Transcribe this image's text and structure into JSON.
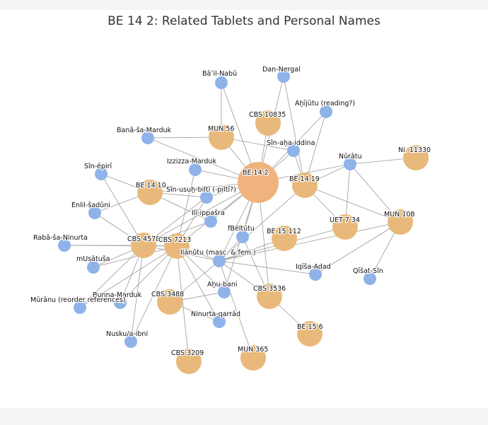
{
  "title": "BE 14 2: Related Tablets and Personal Names",
  "colors": {
    "tablet": "#e8b97a",
    "focus": "#f0b37e",
    "person": "#8fb2e8",
    "edge": "#9a9a9a"
  },
  "nodes": [
    {
      "id": "be142",
      "label": "BE 14 2",
      "kind": "focus"
    },
    {
      "id": "be1419",
      "label": "BE 14 19",
      "kind": "tablet"
    },
    {
      "id": "be1410",
      "label": "BE 14 10",
      "kind": "tablet"
    },
    {
      "id": "be15112",
      "label": "BE 15 112",
      "kind": "tablet"
    },
    {
      "id": "be156",
      "label": "BE 15 6",
      "kind": "tablet"
    },
    {
      "id": "cbs10835",
      "label": "CBS 10835",
      "kind": "tablet"
    },
    {
      "id": "cbs4578",
      "label": "CBS 4578",
      "kind": "tablet"
    },
    {
      "id": "cbs7213",
      "label": "CBS 7213",
      "kind": "tablet"
    },
    {
      "id": "cbs3488",
      "label": "CBS 3488",
      "kind": "tablet"
    },
    {
      "id": "cbs3536",
      "label": "CBS 3536",
      "kind": "tablet"
    },
    {
      "id": "cbs3209",
      "label": "CBS 3209",
      "kind": "tablet"
    },
    {
      "id": "mun56",
      "label": "MUN 56",
      "kind": "tablet"
    },
    {
      "id": "mun108",
      "label": "MUN 108",
      "kind": "tablet"
    },
    {
      "id": "mun365",
      "label": "MUN 365",
      "kind": "tablet"
    },
    {
      "id": "uet734",
      "label": "UET 7 34",
      "kind": "tablet"
    },
    {
      "id": "ni11330",
      "label": "Ni. 11330",
      "kind": "tablet"
    },
    {
      "id": "bailnabu",
      "label": "Bā’il-Nabû",
      "kind": "person"
    },
    {
      "id": "dannergal",
      "label": "Dan-Nergal",
      "kind": "person"
    },
    {
      "id": "ahijutu",
      "label": "Aḫījūtu (reading?)",
      "kind": "person"
    },
    {
      "id": "banasamarduk",
      "label": "Banâ-ša-Marduk",
      "kind": "person"
    },
    {
      "id": "sinahaiddina",
      "label": "Sîn-aḫa-iddina",
      "kind": "person"
    },
    {
      "id": "nuratu",
      "label": "Nūrātu",
      "kind": "person"
    },
    {
      "id": "sinepiri",
      "label": "Sîn-ēpirī",
      "kind": "person"
    },
    {
      "id": "izzizzamarduk",
      "label": "Izzizza-Marduk",
      "kind": "person"
    },
    {
      "id": "sinusuh",
      "label": "Sîn-usuḫ-biltī (-piltī?)",
      "kind": "person"
    },
    {
      "id": "enlilsaduni",
      "label": "Enlil-šadûni",
      "kind": "person"
    },
    {
      "id": "iliippasra",
      "label": "Ilī-ippašra",
      "kind": "person"
    },
    {
      "id": "fbeltutu",
      "label": "fBēltūtu",
      "kind": "person"
    },
    {
      "id": "rabasaninurta",
      "label": "Rabâ-ša-Ninurta",
      "kind": "person"
    },
    {
      "id": "ilanutu",
      "label": "Ilānûtu (masc. & fem.)",
      "kind": "person"
    },
    {
      "id": "musatusa",
      "label": "mUsātuša",
      "kind": "person"
    },
    {
      "id": "iqisaadad",
      "label": "Iqīša-Adad",
      "kind": "person"
    },
    {
      "id": "qisatsin",
      "label": "Qīšat-Sîn",
      "kind": "person"
    },
    {
      "id": "ahubani",
      "label": "Aḫu-bani",
      "kind": "person"
    },
    {
      "id": "bunnamarduk",
      "label": "Bunna-Marduk",
      "kind": "person"
    },
    {
      "id": "muranu",
      "label": "Mūrānu (reorder references)",
      "kind": "person"
    },
    {
      "id": "ninurtaqarrad",
      "label": "Ninurta-qarrād",
      "kind": "person"
    },
    {
      "id": "nuskuaibni",
      "label": "Nusku/a-ibni",
      "kind": "person"
    }
  ],
  "edges": [
    [
      "bailnabu",
      "mun56"
    ],
    [
      "bailnabu",
      "be142"
    ],
    [
      "dannergal",
      "be142"
    ],
    [
      "dannergal",
      "be1419"
    ],
    [
      "ahijutu",
      "be142"
    ],
    [
      "ahijutu",
      "be1419"
    ],
    [
      "cbs10835",
      "be142"
    ],
    [
      "banasamarduk",
      "mun56"
    ],
    [
      "banasamarduk",
      "be142"
    ],
    [
      "sinahaiddina",
      "mun56"
    ],
    [
      "sinahaiddina",
      "be142"
    ],
    [
      "sinahaiddina",
      "be1419"
    ],
    [
      "mun56",
      "be142"
    ],
    [
      "nuratu",
      "be1419"
    ],
    [
      "nuratu",
      "be142"
    ],
    [
      "nuratu",
      "ni11330"
    ],
    [
      "nuratu",
      "uet734"
    ],
    [
      "nuratu",
      "mun108"
    ],
    [
      "sinepiri",
      "be1410"
    ],
    [
      "sinepiri",
      "cbs4578"
    ],
    [
      "izzizzamarduk",
      "be142"
    ],
    [
      "izzizzamarduk",
      "cbs7213"
    ],
    [
      "sinusuh",
      "be142"
    ],
    [
      "sinusuh",
      "be1410"
    ],
    [
      "sinusuh",
      "cbs7213"
    ],
    [
      "sinusuh",
      "cbs4578"
    ],
    [
      "be1410",
      "be142"
    ],
    [
      "enlilsaduni",
      "cbs4578"
    ],
    [
      "enlilsaduni",
      "be1410"
    ],
    [
      "iliippasra",
      "be142"
    ],
    [
      "iliippasra",
      "cbs4578"
    ],
    [
      "iliippasra",
      "be1410"
    ],
    [
      "fbeltutu",
      "be142"
    ],
    [
      "fbeltutu",
      "cbs3536"
    ],
    [
      "fbeltutu",
      "ilanutu"
    ],
    [
      "rabasaninurta",
      "cbs4578"
    ],
    [
      "rabasaninurta",
      "cbs7213"
    ],
    [
      "ilanutu",
      "be142"
    ],
    [
      "ilanutu",
      "be1419"
    ],
    [
      "ilanutu",
      "be15112"
    ],
    [
      "ilanutu",
      "cbs4578"
    ],
    [
      "ilanutu",
      "cbs7213"
    ],
    [
      "ilanutu",
      "cbs3488"
    ],
    [
      "ilanutu",
      "cbs3536"
    ],
    [
      "ilanutu",
      "mun365"
    ],
    [
      "ilanutu",
      "mun108"
    ],
    [
      "ilanutu",
      "iqisaadad"
    ],
    [
      "ilanutu",
      "uet734"
    ],
    [
      "musatusa",
      "cbs4578"
    ],
    [
      "musatusa",
      "cbs7213"
    ],
    [
      "be1419",
      "uet734"
    ],
    [
      "be1419",
      "mun108"
    ],
    [
      "iqisaadad",
      "mun108"
    ],
    [
      "qisatsin",
      "mun108"
    ],
    [
      "ahubani",
      "be142"
    ],
    [
      "ahubani",
      "cbs3488"
    ],
    [
      "ahubani",
      "cbs7213"
    ],
    [
      "bunnamarduk",
      "cbs4578"
    ],
    [
      "bunnamarduk",
      "cbs7213"
    ],
    [
      "muranu",
      "cbs4578"
    ],
    [
      "muranu",
      "cbs7213"
    ],
    [
      "ninurtaqarrad",
      "cbs7213"
    ],
    [
      "ninurtaqarrad",
      "cbs3488"
    ],
    [
      "nuskuaibni",
      "cbs4578"
    ],
    [
      "nuskuaibni",
      "cbs7213"
    ],
    [
      "cbs3209",
      "cbs7213"
    ],
    [
      "cbs3536",
      "be156"
    ],
    [
      "cbs3536",
      "be142"
    ],
    [
      "cbs4578",
      "cbs7213"
    ],
    [
      "cbs4578",
      "be142"
    ],
    [
      "cbs7213",
      "be142"
    ]
  ]
}
